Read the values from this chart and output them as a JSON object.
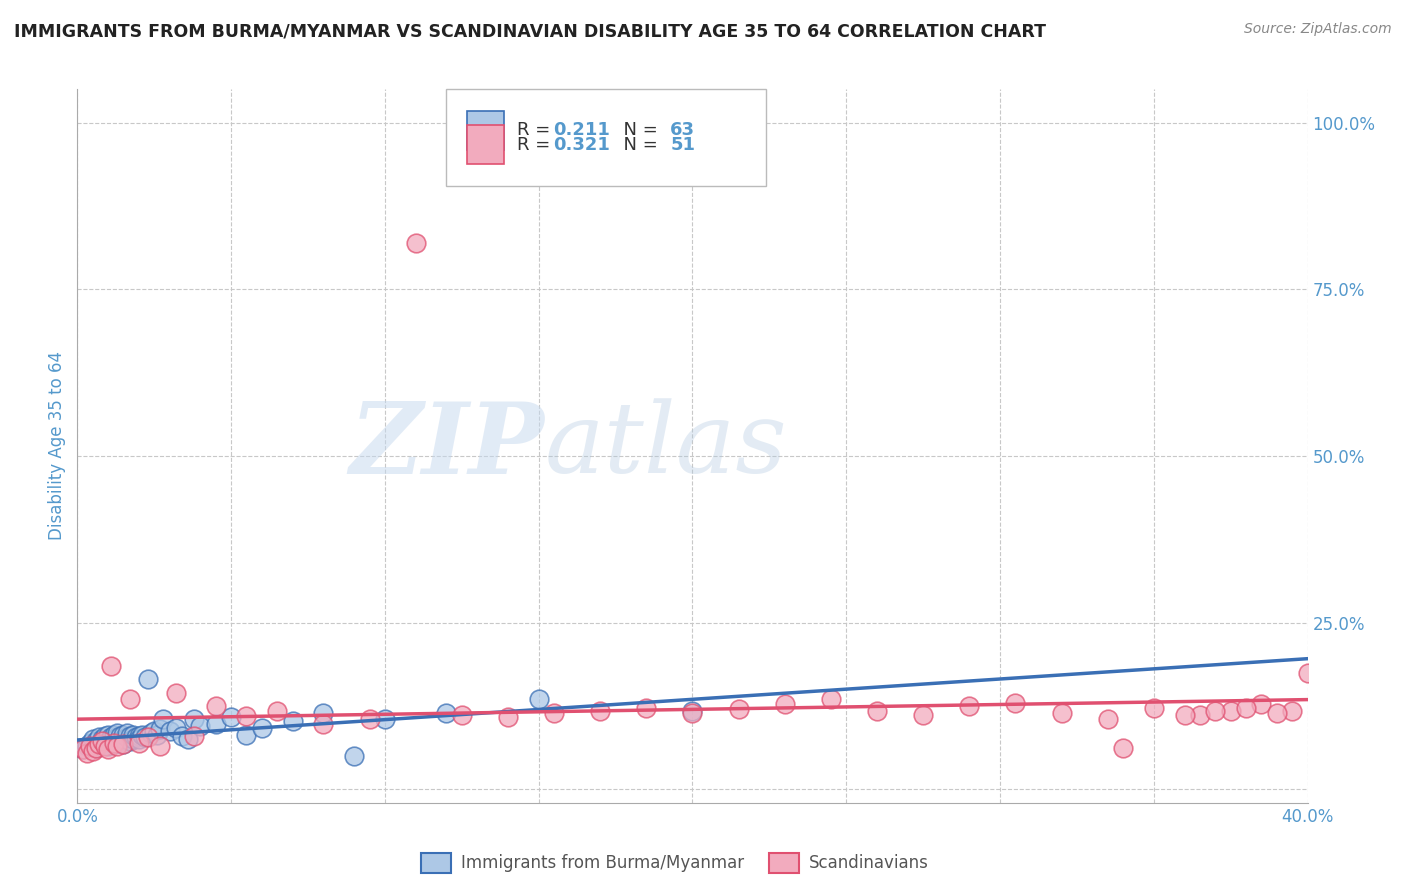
{
  "title": "IMMIGRANTS FROM BURMA/MYANMAR VS SCANDINAVIAN DISABILITY AGE 35 TO 64 CORRELATION CHART",
  "source": "Source: ZipAtlas.com",
  "ylabel": "Disability Age 35 to 64",
  "xlim": [
    0.0,
    0.4
  ],
  "ylim": [
    -0.02,
    1.05
  ],
  "xticks": [
    0.0,
    0.05,
    0.1,
    0.15,
    0.2,
    0.25,
    0.3,
    0.35,
    0.4
  ],
  "yticks": [
    0.0,
    0.25,
    0.5,
    0.75,
    1.0
  ],
  "xticklabels": [
    "0.0%",
    "",
    "",
    "",
    "",
    "",
    "",
    "",
    "40.0%"
  ],
  "yticklabels": [
    "",
    "25.0%",
    "50.0%",
    "75.0%",
    "100.0%"
  ],
  "color_blue": "#adc8e6",
  "color_pink": "#f2abbe",
  "line_blue": "#3a6fb5",
  "line_pink": "#e05070",
  "watermark_zip": "ZIP",
  "watermark_atlas": "atlas",
  "background_color": "#ffffff",
  "grid_color": "#c8c8c8",
  "title_color": "#222222",
  "axis_label_color": "#5599cc",
  "blue_scatter_x": [
    0.002,
    0.003,
    0.004,
    0.005,
    0.005,
    0.006,
    0.006,
    0.007,
    0.007,
    0.008,
    0.008,
    0.009,
    0.009,
    0.01,
    0.01,
    0.01,
    0.011,
    0.011,
    0.012,
    0.012,
    0.012,
    0.013,
    0.013,
    0.013,
    0.014,
    0.014,
    0.015,
    0.015,
    0.015,
    0.016,
    0.016,
    0.017,
    0.017,
    0.018,
    0.018,
    0.019,
    0.02,
    0.02,
    0.021,
    0.022,
    0.023,
    0.024,
    0.025,
    0.026,
    0.027,
    0.028,
    0.03,
    0.032,
    0.034,
    0.036,
    0.038,
    0.04,
    0.045,
    0.05,
    0.055,
    0.06,
    0.07,
    0.08,
    0.09,
    0.1,
    0.12,
    0.15,
    0.2
  ],
  "blue_scatter_y": [
    0.06,
    0.065,
    0.07,
    0.068,
    0.075,
    0.062,
    0.072,
    0.065,
    0.078,
    0.07,
    0.075,
    0.068,
    0.08,
    0.065,
    0.072,
    0.082,
    0.07,
    0.078,
    0.068,
    0.075,
    0.082,
    0.07,
    0.078,
    0.085,
    0.072,
    0.08,
    0.068,
    0.075,
    0.082,
    0.078,
    0.085,
    0.072,
    0.08,
    0.075,
    0.082,
    0.078,
    0.08,
    0.075,
    0.082,
    0.078,
    0.165,
    0.085,
    0.088,
    0.082,
    0.09,
    0.105,
    0.088,
    0.092,
    0.08,
    0.075,
    0.105,
    0.095,
    0.098,
    0.108,
    0.082,
    0.092,
    0.102,
    0.115,
    0.05,
    0.105,
    0.115,
    0.135,
    0.118
  ],
  "pink_scatter_x": [
    0.002,
    0.003,
    0.004,
    0.005,
    0.006,
    0.007,
    0.008,
    0.009,
    0.01,
    0.011,
    0.012,
    0.013,
    0.015,
    0.017,
    0.02,
    0.023,
    0.027,
    0.032,
    0.038,
    0.045,
    0.055,
    0.065,
    0.08,
    0.095,
    0.11,
    0.125,
    0.14,
    0.155,
    0.17,
    0.185,
    0.2,
    0.215,
    0.23,
    0.245,
    0.26,
    0.275,
    0.29,
    0.305,
    0.32,
    0.335,
    0.35,
    0.365,
    0.375,
    0.385,
    0.395,
    0.4,
    0.39,
    0.38,
    0.37,
    0.36,
    0.34
  ],
  "pink_scatter_y": [
    0.06,
    0.055,
    0.065,
    0.058,
    0.062,
    0.068,
    0.072,
    0.065,
    0.06,
    0.185,
    0.07,
    0.065,
    0.068,
    0.135,
    0.07,
    0.078,
    0.065,
    0.145,
    0.08,
    0.125,
    0.11,
    0.118,
    0.098,
    0.105,
    0.82,
    0.112,
    0.108,
    0.115,
    0.118,
    0.122,
    0.115,
    0.12,
    0.128,
    0.135,
    0.118,
    0.112,
    0.125,
    0.13,
    0.115,
    0.105,
    0.122,
    0.112,
    0.118,
    0.128,
    0.118,
    0.175,
    0.115,
    0.122,
    0.118,
    0.112,
    0.062
  ]
}
